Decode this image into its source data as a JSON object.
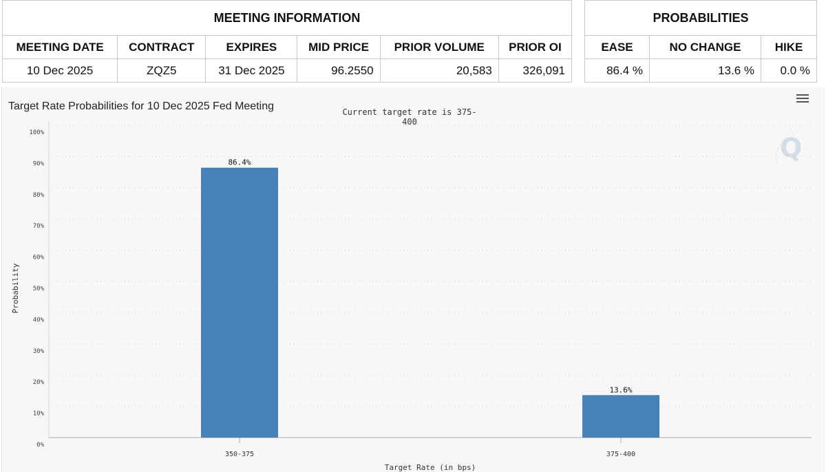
{
  "meeting_info": {
    "title": "MEETING INFORMATION",
    "headers": [
      "MEETING DATE",
      "CONTRACT",
      "EXPIRES",
      "MID PRICE",
      "PRIOR VOLUME",
      "PRIOR OI"
    ],
    "row": {
      "meeting_date": "10 Dec 2025",
      "contract": "ZQZ5",
      "expires": "31 Dec 2025",
      "mid_price": "96.2550",
      "prior_volume": "20,583",
      "prior_oi": "326,091"
    }
  },
  "probabilities": {
    "title": "PROBABILITIES",
    "headers": [
      "EASE",
      "NO CHANGE",
      "HIKE"
    ],
    "row": {
      "ease": "86.4 %",
      "no_change": "13.6 %",
      "hike": "0.0 %"
    }
  },
  "icons": {
    "menu": "hamburger-menu-icon",
    "logo": "q-logo-icon"
  },
  "chart_data": {
    "type": "bar",
    "title": "Target Rate Probabilities for 10 Dec 2025 Fed Meeting",
    "subtitle": "Current target rate is 375-400",
    "categories": [
      "350-375",
      "375-400"
    ],
    "values": [
      86.4,
      13.6
    ],
    "data_labels": [
      "86.4%",
      "13.6%"
    ],
    "xlabel": "Target Rate (in bps)",
    "ylabel": "Probability",
    "ylim": [
      0,
      100
    ],
    "yticks": [
      0,
      10,
      20,
      30,
      40,
      50,
      60,
      70,
      80,
      90,
      100
    ],
    "ytick_labels": [
      "0%",
      "10%",
      "20%",
      "30%",
      "40%",
      "50%",
      "60%",
      "70%",
      "80%",
      "90%",
      "100%"
    ],
    "grid": true,
    "bar_color": "#4682b8"
  }
}
